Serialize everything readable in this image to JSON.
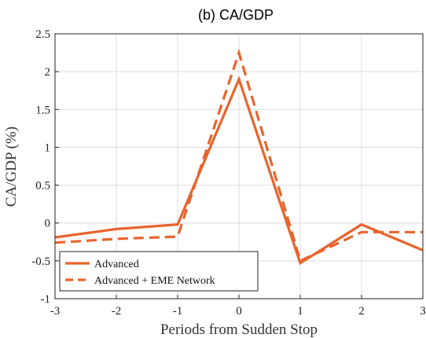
{
  "chart_data": {
    "type": "line",
    "title": "(b) CA/GDP",
    "xlabel": "Periods from Sudden Stop",
    "ylabel": "CA/GDP (%)",
    "xlim": [
      -3,
      3
    ],
    "ylim": [
      -1,
      2.5
    ],
    "xticks": [
      -3,
      -2,
      -1,
      0,
      1,
      2,
      3
    ],
    "yticks": [
      -1,
      -0.5,
      0,
      0.5,
      1,
      1.5,
      2,
      2.5
    ],
    "xtick_labels": [
      "-3",
      "-2",
      "-1",
      "0",
      "1",
      "2",
      "3"
    ],
    "ytick_labels": [
      "-1",
      "-0.5",
      "0",
      "0.5",
      "1",
      "1.5",
      "2",
      "2.5"
    ],
    "grid": true,
    "legend_position": "bottom-left",
    "x": [
      -3,
      -2,
      -1,
      0,
      1,
      2,
      3
    ],
    "series": [
      {
        "name": "Advanced",
        "style": "solid",
        "color": "#e8642c",
        "values": [
          -0.19,
          -0.08,
          -0.02,
          1.9,
          -0.53,
          -0.02,
          -0.36
        ]
      },
      {
        "name": "Advanced + EME Network",
        "style": "dashed",
        "color": "#e8642c",
        "values": [
          -0.26,
          -0.21,
          -0.18,
          2.25,
          -0.5,
          -0.12,
          -0.12
        ]
      }
    ]
  }
}
